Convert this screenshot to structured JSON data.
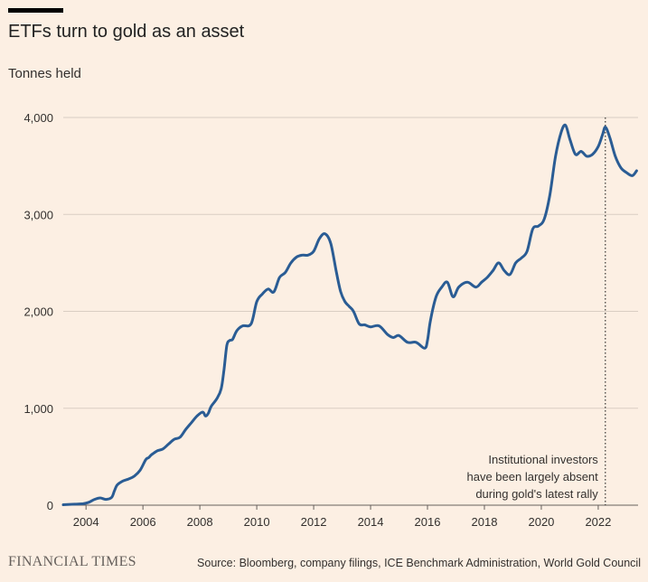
{
  "header": {
    "title": "ETFs turn to gold as an asset",
    "subtitle": "Tonnes held"
  },
  "footer": {
    "brand": "FINANCIAL TIMES",
    "source": "Source: Bloomberg, company filings, ICE Benchmark Administration, World Gold Council"
  },
  "colors": {
    "background": "#fcefe3",
    "line": "#2a5c94",
    "grid": "#d9cdc3",
    "text": "#33302e"
  },
  "chart_data": {
    "type": "line",
    "title": "ETFs turn to gold as an asset",
    "ylabel": "Tonnes held",
    "xlabel": "",
    "xlim": [
      2003.2,
      2023.4
    ],
    "ylim": [
      0,
      4000
    ],
    "x_ticks": [
      2004,
      2006,
      2008,
      2010,
      2012,
      2014,
      2016,
      2018,
      2020,
      2022
    ],
    "y_ticks": [
      {
        "value": 0,
        "label": "0"
      },
      {
        "value": 1000,
        "label": "1,000"
      },
      {
        "value": 2000,
        "label": "2,000"
      },
      {
        "value": 3000,
        "label": "3,000"
      },
      {
        "value": 4000,
        "label": "4,000"
      }
    ],
    "grid": true,
    "marker_line": {
      "x": 2022.25,
      "style": "dotted",
      "annotation": [
        "Institutional investors",
        "have been largely absent",
        "during gold's latest rally"
      ]
    },
    "series": [
      {
        "x": [
          2003.2,
          2003.6,
          2003.9,
          2004.1,
          2004.3,
          2004.5,
          2004.7,
          2004.9,
          2005.0,
          2005.1,
          2005.3,
          2005.5,
          2005.7,
          2005.9,
          2006.1,
          2006.2,
          2006.3,
          2006.5,
          2006.7,
          2006.9,
          2007.1,
          2007.3,
          2007.5,
          2007.7,
          2007.9,
          2008.1,
          2008.2,
          2008.3,
          2008.4,
          2008.6,
          2008.75,
          2008.85,
          2008.95,
          2009.05,
          2009.15,
          2009.3,
          2009.5,
          2009.8,
          2010.0,
          2010.2,
          2010.4,
          2010.6,
          2010.8,
          2011.0,
          2011.2,
          2011.4,
          2011.6,
          2011.8,
          2012.0,
          2012.2,
          2012.4,
          2012.6,
          2012.8,
          2012.95,
          2013.1,
          2013.25,
          2013.4,
          2013.6,
          2013.8,
          2014.0,
          2014.3,
          2014.6,
          2014.8,
          2015.0,
          2015.3,
          2015.6,
          2015.9,
          2016.0,
          2016.1,
          2016.3,
          2016.5,
          2016.7,
          2016.9,
          2017.1,
          2017.4,
          2017.7,
          2017.9,
          2018.1,
          2018.3,
          2018.5,
          2018.7,
          2018.9,
          2019.1,
          2019.3,
          2019.5,
          2019.7,
          2019.9,
          2020.1,
          2020.3,
          2020.5,
          2020.7,
          2020.85,
          2021.0,
          2021.2,
          2021.4,
          2021.6,
          2021.8,
          2022.0,
          2022.15,
          2022.25,
          2022.4,
          2022.6,
          2022.8,
          2023.0,
          2023.2,
          2023.35
        ],
        "values": [
          5,
          10,
          15,
          30,
          60,
          75,
          60,
          80,
          150,
          210,
          250,
          270,
          300,
          360,
          470,
          490,
          520,
          560,
          580,
          630,
          680,
          700,
          780,
          850,
          920,
          960,
          920,
          950,
          1020,
          1100,
          1200,
          1400,
          1650,
          1700,
          1710,
          1800,
          1850,
          1870,
          2100,
          2180,
          2230,
          2200,
          2350,
          2400,
          2500,
          2560,
          2580,
          2580,
          2620,
          2750,
          2800,
          2700,
          2400,
          2200,
          2100,
          2050,
          2000,
          1870,
          1860,
          1840,
          1850,
          1760,
          1730,
          1750,
          1680,
          1680,
          1620,
          1700,
          1900,
          2150,
          2250,
          2300,
          2150,
          2250,
          2300,
          2250,
          2300,
          2350,
          2420,
          2500,
          2420,
          2380,
          2500,
          2550,
          2620,
          2850,
          2880,
          2950,
          3200,
          3600,
          3850,
          3920,
          3780,
          3620,
          3650,
          3600,
          3620,
          3700,
          3820,
          3900,
          3800,
          3600,
          3480,
          3430,
          3400,
          3450
        ]
      }
    ]
  }
}
